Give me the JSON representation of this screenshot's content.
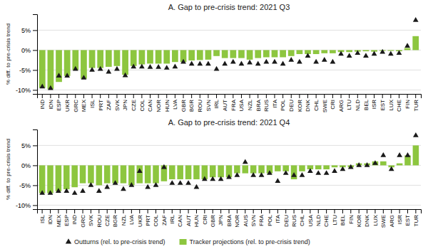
{
  "chart_data": [
    {
      "type": "bar",
      "title": "A. Gap to pre-crisis trend: 2021 Q3",
      "y_label": "% diff. to pre-crisis trend",
      "categories": [
        "IND",
        "IDN",
        "ESP",
        "UKR",
        "GRC",
        "MEX",
        "ISL",
        "PRT",
        "ZAF",
        "SVK",
        "JPN",
        "CZE",
        "COL",
        "CAN",
        "NOR",
        "HUN",
        "LVA",
        "GBR",
        "BGR",
        "ROU",
        "SVN",
        "IRL",
        "AUT",
        "FRA",
        "USA",
        "NZL",
        "BRA",
        "RUS",
        "ITA",
        "POL",
        "DEU",
        "KOR",
        "DNK",
        "CHL",
        "SWE",
        "CRI",
        "ARG",
        "LTU",
        "NLD",
        "BEL",
        "ISR",
        "EST",
        "LUX",
        "CHE",
        "FIN",
        "TUR"
      ],
      "series": [
        {
          "type": "scatter",
          "marker": "triangle-up",
          "color": "#1a1a1a",
          "values": [
            -9.2,
            -9.6,
            -6.5,
            -6.5,
            -4.8,
            -7.0,
            -5.0,
            -4.8,
            -5.5,
            -4.8,
            -6.4,
            -4.2,
            -4.2,
            -4.3,
            -4.3,
            -4.5,
            -4.2,
            -3.0,
            -3.5,
            -3.5,
            -3.5,
            -4.8,
            -3.5,
            -3.0,
            -3.5,
            -3.2,
            -3.5,
            -3.0,
            -3.0,
            -3.5,
            -2.5,
            -3.0,
            -1.5,
            -3.0,
            -2.5,
            -3.0,
            -1.0,
            -1.5,
            -0.8,
            -1.5,
            -1.0,
            -0.5,
            -1.0,
            -0.8,
            1.0,
            7.5
          ]
        },
        {
          "type": "bar",
          "color": "#8DC63F",
          "values": [
            -9.5,
            -9.8,
            -8.0,
            -6.5,
            -5.0,
            -7.2,
            -4.5,
            -4.5,
            -4.2,
            -4.0,
            -6.2,
            -4.0,
            -3.6,
            -3.4,
            -3.4,
            -3.4,
            -3.0,
            -3.0,
            -2.6,
            -2.5,
            -2.4,
            -1.5,
            -2.0,
            -2.0,
            -2.0,
            -2.4,
            -2.0,
            -1.8,
            -1.8,
            -1.8,
            -1.5,
            -1.0,
            -1.0,
            -1.0,
            -0.8,
            -0.8,
            -0.5,
            -0.5,
            -0.4,
            -0.3,
            -0.4,
            -0.2,
            -0.2,
            -0.3,
            0.5,
            3.5
          ]
        }
      ],
      "ylim": [
        -11,
        9
      ],
      "yticks": [
        {
          "value": -10,
          "label": "-10%"
        },
        {
          "value": -5,
          "label": "-5%"
        },
        {
          "value": 0,
          "label": "0%"
        },
        {
          "value": 5,
          "label": "5%"
        }
      ],
      "grid": true
    },
    {
      "type": "bar",
      "title": "A. Gap to pre-crisis trend: 2021 Q4",
      "y_label": "% diff. to pre-crisis trend",
      "categories": [
        "ISL",
        "IDN",
        "MEX",
        "ESP",
        "IND",
        "GRC",
        "SVK",
        "ROU",
        "CZE",
        "BGR",
        "NZL",
        "LVA",
        "UKR",
        "PRT",
        "COL",
        "ZAF",
        "IRL",
        "CAN",
        "AUT",
        "HUN",
        "CRI",
        "GBR",
        "JPN",
        "BRA",
        "NOR",
        "AUS",
        "SVN",
        "FRA",
        "POL",
        "ITA",
        "DEU",
        "RUS",
        "CHL",
        "USA",
        "NLD",
        "CHE",
        "LTU",
        "BEL",
        "FIN",
        "KOR",
        "DNK",
        "LUX",
        "SWE",
        "ARG",
        "ISR",
        "EST",
        "TUR"
      ],
      "series": [
        {
          "name": "Outturns (rel. to pre-crisis trend)",
          "type": "scatter",
          "marker": "triangle-up",
          "color": "#1a1a1a",
          "values": [
            -7.0,
            -7.0,
            -6.5,
            -6.5,
            -7.0,
            -6.5,
            -5.0,
            -6.5,
            -5.5,
            -4.5,
            -6.0,
            -5.0,
            -1.5,
            -5.5,
            -5.0,
            -0.5,
            -4.5,
            -4.5,
            -4.5,
            -5.5,
            -3.5,
            -3.5,
            -3.5,
            -3.0,
            -2.5,
            0.8,
            -2.5,
            -2.5,
            -2.0,
            -4.0,
            -2.0,
            -2.5,
            -2.5,
            -1.5,
            -2.0,
            -2.0,
            -1.5,
            -1.0,
            -0.5,
            0.0,
            0.0,
            0.5,
            2.5,
            -1.0,
            2.5,
            2.5,
            7.5
          ]
        },
        {
          "name": "Tracker projections (rel. to pre-crisis trend)",
          "type": "bar",
          "color": "#8DC63F",
          "values": [
            -7.0,
            -7.0,
            -6.5,
            -6.0,
            -5.5,
            -4.5,
            -4.5,
            -5.0,
            -4.5,
            -4.5,
            -4.5,
            -5.0,
            -4.5,
            -4.5,
            -4.5,
            -4.0,
            -3.5,
            -3.5,
            -3.5,
            -3.5,
            -3.5,
            -3.0,
            -3.0,
            -3.0,
            -2.0,
            -2.0,
            -2.0,
            -2.0,
            -2.0,
            -1.5,
            -1.5,
            -3.5,
            -1.5,
            -1.0,
            -1.0,
            -1.0,
            -0.5,
            -0.5,
            -0.5,
            0.5,
            0.5,
            1.0,
            1.0,
            -0.5,
            0.5,
            2.5,
            5.0
          ]
        }
      ],
      "ylim": [
        -11,
        9
      ],
      "yticks": [
        {
          "value": -10,
          "label": "-10%"
        },
        {
          "value": -5,
          "label": "-5%"
        },
        {
          "value": 0,
          "label": "0%"
        },
        {
          "value": 5,
          "label": "5%"
        }
      ],
      "grid": true,
      "legend": "bottom"
    }
  ]
}
